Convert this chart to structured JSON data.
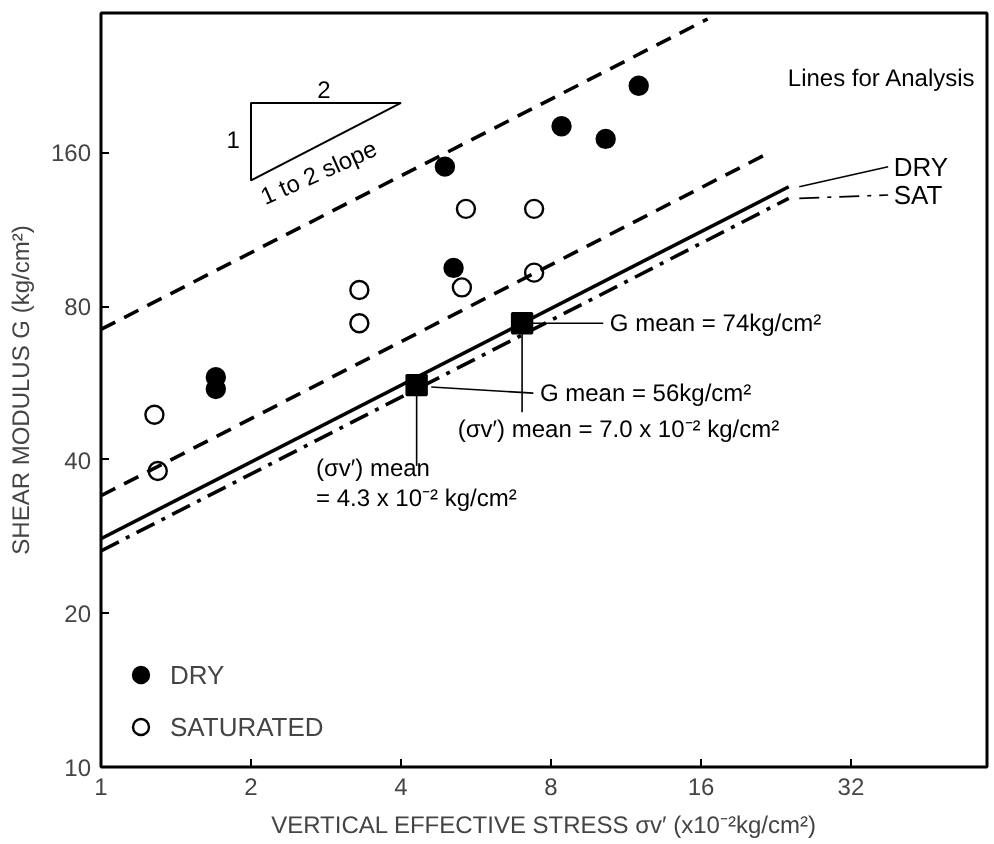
{
  "chart_data": {
    "type": "scatter",
    "xlabel": "VERTICAL EFFECTIVE STRESS σv′ (x10⁻²kg/cm²)",
    "ylabel": "SHEAR MODULUS G (kg/cm²)",
    "log": "xy",
    "grid": false,
    "legend": "bottom left",
    "xlim": [
      1,
      60
    ],
    "ylim": [
      10,
      300
    ],
    "xticks": [
      1,
      2,
      4,
      8,
      16,
      32
    ],
    "yticks": [
      10,
      20,
      40,
      80,
      160
    ],
    "series": [
      {
        "name": "DRY",
        "marker": "circle",
        "color": "#000000",
        "x": [
          1.7,
          1.7,
          4.9,
          5.1,
          8.4,
          10.3,
          12.0
        ],
        "values": [
          58,
          55,
          150,
          95,
          180,
          170,
          216
        ]
      },
      {
        "name": "SATURATED",
        "marker": "circle",
        "color": "#ffffff",
        "x": [
          1.28,
          1.3,
          3.3,
          3.3,
          5.4,
          5.3,
          7.4,
          7.4
        ],
        "values": [
          49,
          38,
          86,
          74,
          124,
          87,
          124,
          93
        ]
      },
      {
        "marker": "square",
        "color": "#000000",
        "x": [
          4.3,
          7.0
        ],
        "values": [
          56,
          74
        ]
      },
      {
        "type": "line",
        "line_style": "dashed",
        "color": "#000000",
        "x": [
          1,
          16.5
        ],
        "values": [
          72,
          292
        ]
      },
      {
        "type": "line",
        "line_style": "dashed",
        "color": "#000000",
        "x": [
          1,
          22
        ],
        "values": [
          34,
          160
        ]
      },
      {
        "name": "DRY",
        "type": "line",
        "line_style": "solid",
        "color": "#000000",
        "x": [
          1,
          24
        ],
        "values": [
          28,
          137
        ]
      },
      {
        "name": "SAT",
        "type": "line",
        "line_style": "dashdot",
        "color": "#000000",
        "x": [
          1,
          24
        ],
        "values": [
          26.5,
          130
        ]
      }
    ],
    "annotations": [
      "2",
      "1",
      "1 to 2 slope",
      "Lines for Analysis",
      "G mean = 74kg/cm²",
      "G mean = 56kg/cm²",
      {
        "text": "(σv′) mean = 7.0 x 10⁻² kg/cm²",
        "x": 7.0,
        "y": 74
      },
      {
        "text": "(σv′) mean = 4.3 x 10⁻² kg/cm²",
        "x": 4.3,
        "y": 56
      }
    ]
  }
}
